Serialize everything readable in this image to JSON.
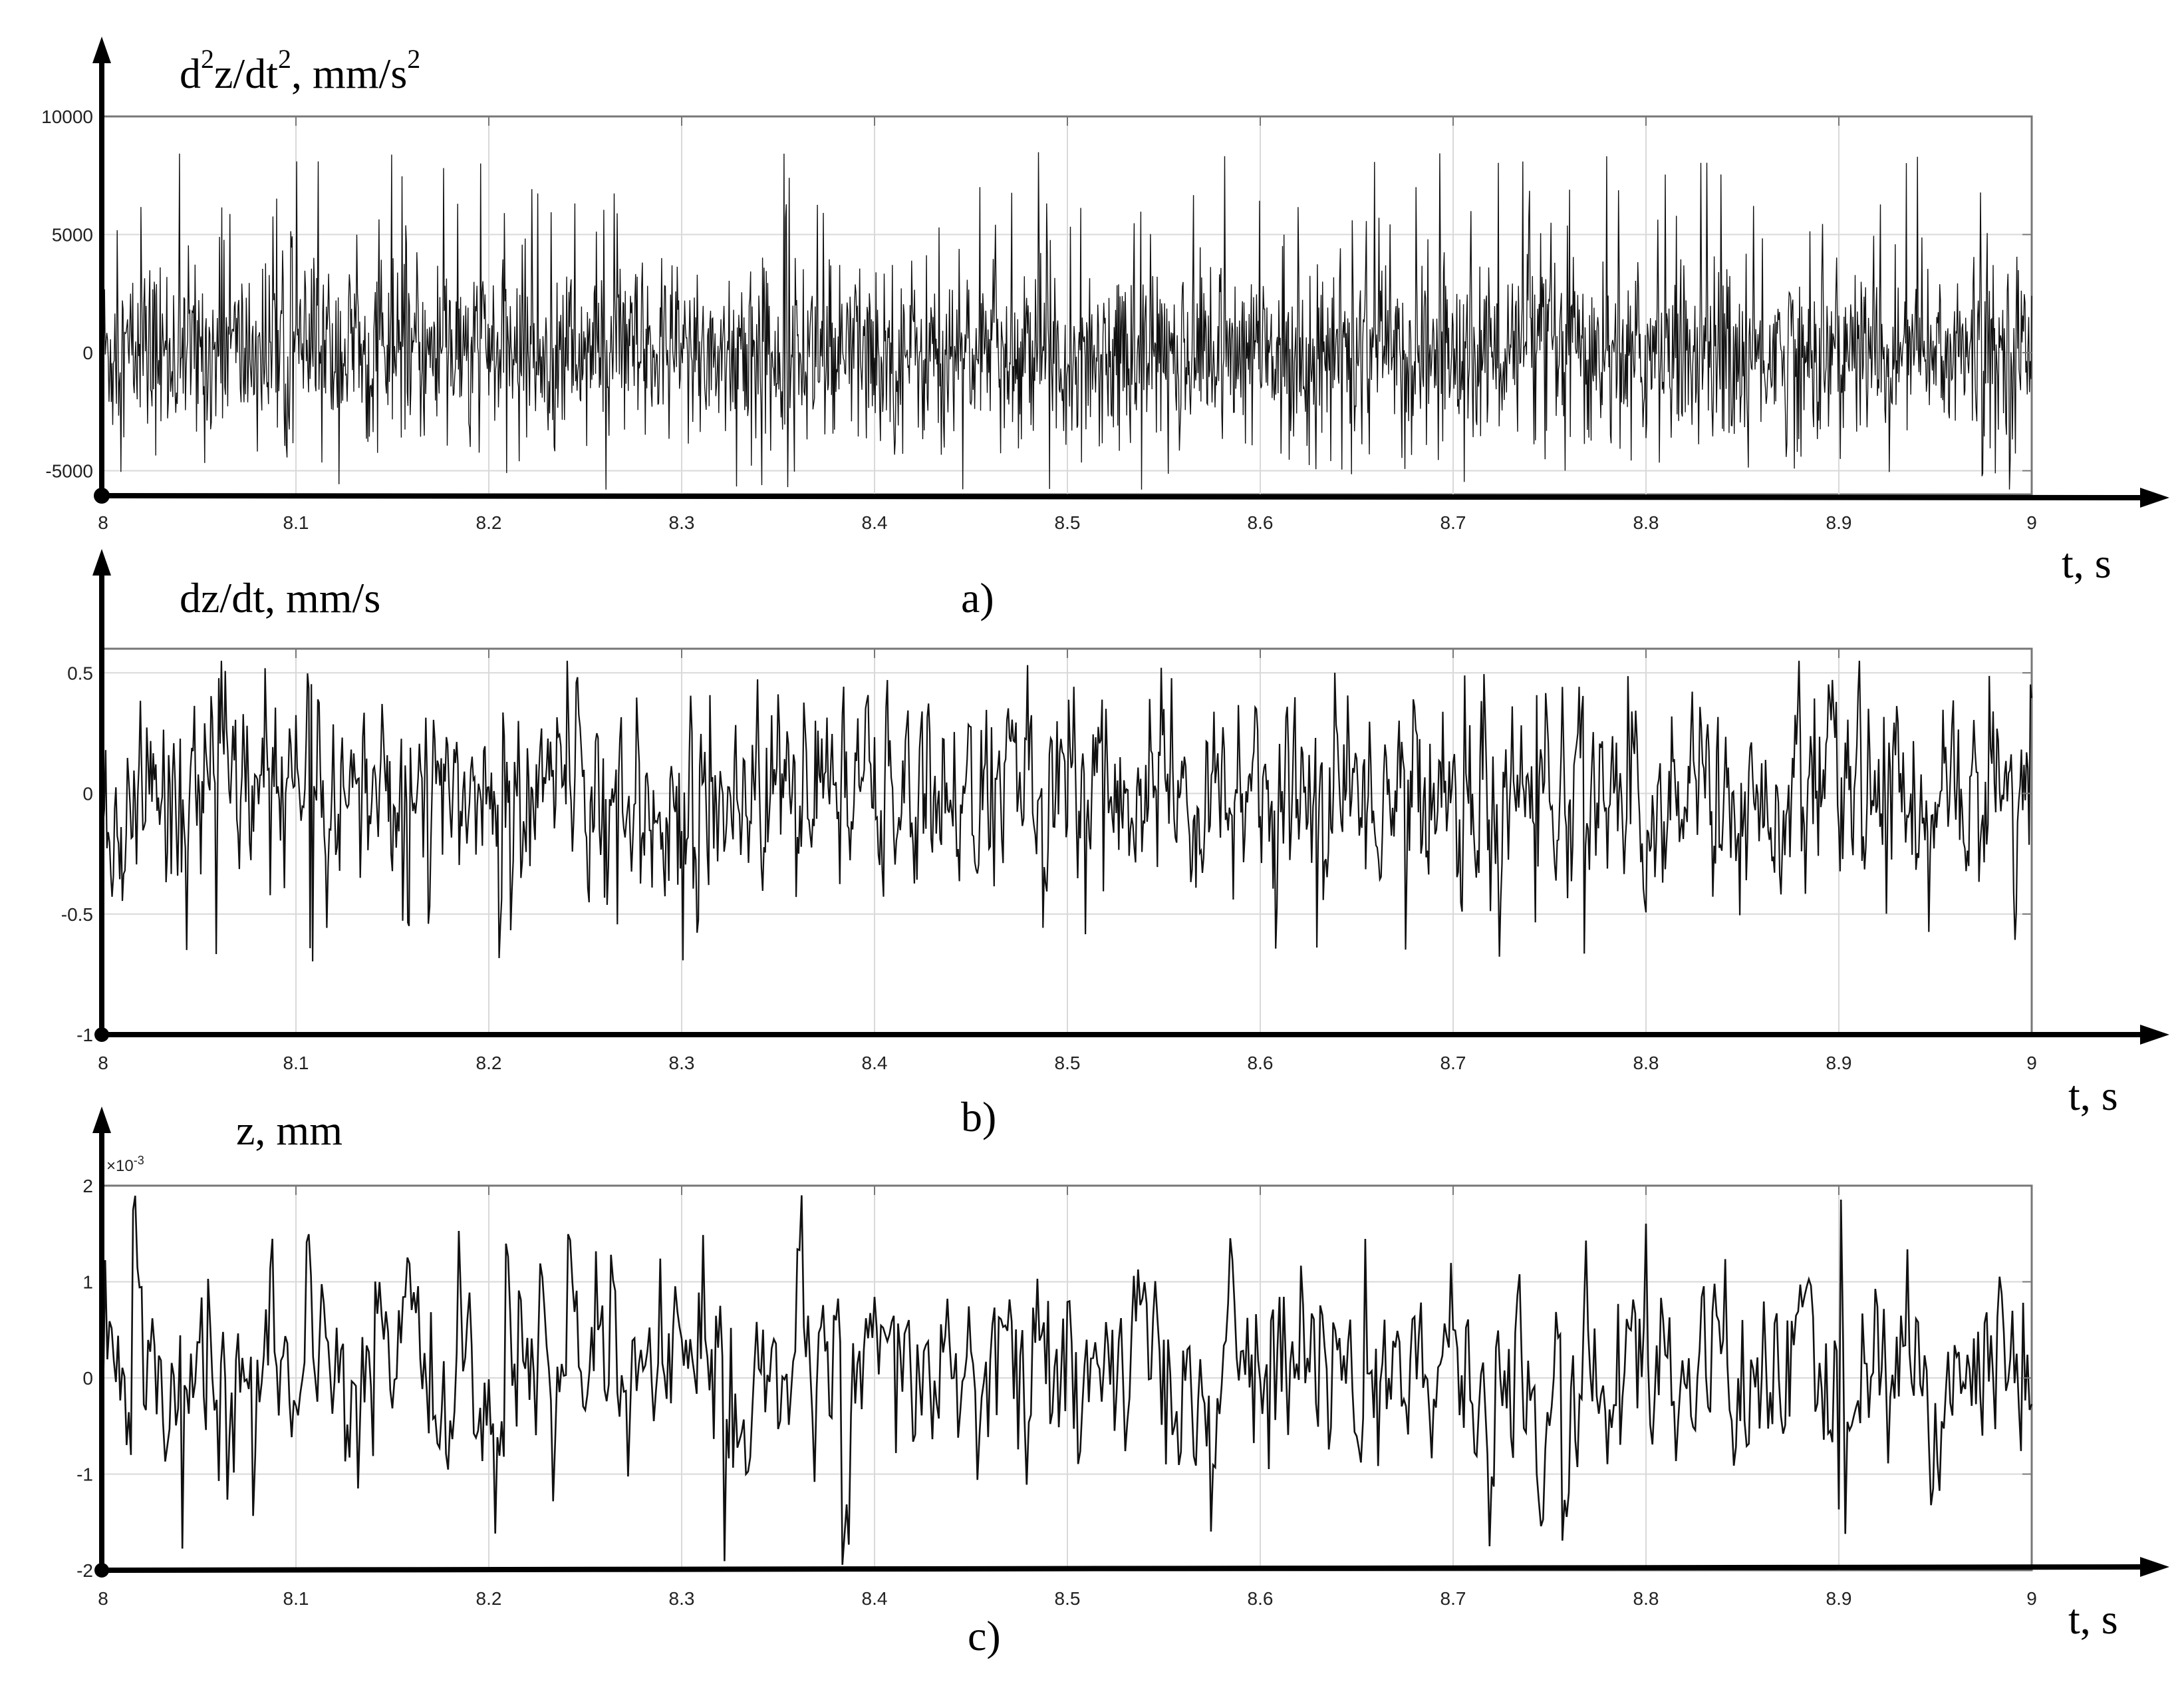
{
  "chart_data": [
    {
      "type": "line",
      "panel_label": "a)",
      "ylabel": {
        "base": "d",
        "sup1": "2",
        "mid": "z/dt",
        "sup2": "2",
        "tail": ", mm/s",
        "sup3": "2"
      },
      "xlabel": "t, s",
      "xlim": [
        8,
        9
      ],
      "ylim": [
        -6000,
        10000
      ],
      "x_ticks": [
        "8",
        "8.1",
        "8.2",
        "8.3",
        "8.4",
        "8.5",
        "8.6",
        "8.7",
        "8.8",
        "8.9",
        "9"
      ],
      "y_ticks": [
        {
          "value": 10000,
          "label": "10000"
        },
        {
          "value": 5000,
          "label": "5000"
        },
        {
          "value": 0,
          "label": "0"
        },
        {
          "value": -5000,
          "label": "-5000"
        }
      ],
      "grid": true,
      "signal": {
        "center": 0,
        "amplitude_min": -5800,
        "amplitude_max": 8500,
        "typical_range": [
          -3000,
          4000
        ]
      }
    },
    {
      "type": "line",
      "panel_label": "b)",
      "ylabel": "dz/dt, mm/s",
      "xlabel": "t, s",
      "xlim": [
        8,
        9
      ],
      "ylim": [
        -1,
        0.6
      ],
      "x_ticks": [
        "8",
        "8.1",
        "8.2",
        "8.3",
        "8.4",
        "8.5",
        "8.6",
        "8.7",
        "8.8",
        "8.9",
        "9"
      ],
      "y_ticks": [
        {
          "value": 0.5,
          "label": "0.5"
        },
        {
          "value": 0,
          "label": "0"
        },
        {
          "value": -0.5,
          "label": "-0.5"
        },
        {
          "value": -1,
          "label": "-1"
        }
      ],
      "grid": true,
      "signal": {
        "center": 0,
        "amplitude_min": -0.7,
        "amplitude_max": 0.55,
        "typical_range": [
          -0.35,
          0.35
        ]
      }
    },
    {
      "type": "line",
      "panel_label": "c)",
      "ylabel": "z, mm",
      "xlabel": "t, s",
      "scale_note": "×10",
      "scale_exp": "-3",
      "xlim": [
        8,
        9
      ],
      "ylim": [
        -2,
        2
      ],
      "x_ticks": [
        "8",
        "8.1",
        "8.2",
        "8.3",
        "8.4",
        "8.5",
        "8.6",
        "8.7",
        "8.8",
        "8.9",
        "9"
      ],
      "y_ticks": [
        {
          "value": 2,
          "label": "2"
        },
        {
          "value": 1,
          "label": "1"
        },
        {
          "value": 0,
          "label": "0"
        },
        {
          "value": -1,
          "label": "-1"
        },
        {
          "value": -2,
          "label": "-2"
        }
      ],
      "grid": true,
      "signal": {
        "center": 0,
        "amplitude_min": -1.95,
        "amplitude_max": 1.95,
        "typical_range": [
          -0.9,
          1.0
        ]
      }
    }
  ]
}
